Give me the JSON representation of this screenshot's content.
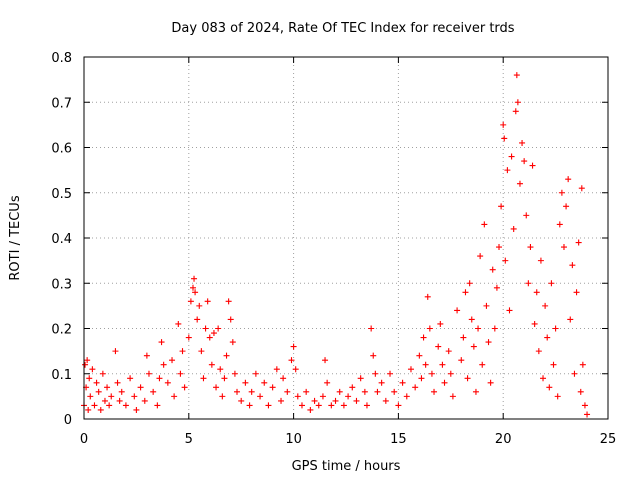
{
  "chart_data": {
    "type": "scatter",
    "title": "Day 083 of 2024, Rate Of TEC Index for receiver trds",
    "xlabel": "GPS time / hours",
    "ylabel": "ROTI / TECUs",
    "xlim": [
      0,
      25
    ],
    "ylim": [
      0,
      0.8
    ],
    "xticks": [
      0,
      5,
      10,
      15,
      20,
      25
    ],
    "xtick_labels": [
      "0",
      "5",
      "10",
      "15",
      "20",
      "25"
    ],
    "yticks": [
      0,
      0.1,
      0.2,
      0.3,
      0.4,
      0.5,
      0.6,
      0.7,
      0.8
    ],
    "ytick_labels": [
      "0",
      "0.1",
      "0.2",
      "0.3",
      "0.4",
      "0.5",
      "0.6",
      "0.7",
      "0.8"
    ],
    "grid": true,
    "marker": "plus",
    "color": "#ff0000",
    "series": [
      {
        "points": [
          [
            0.0,
            0.03
          ],
          [
            0.05,
            0.12
          ],
          [
            0.1,
            0.07
          ],
          [
            0.15,
            0.13
          ],
          [
            0.2,
            0.02
          ],
          [
            0.25,
            0.09
          ],
          [
            0.3,
            0.05
          ],
          [
            0.4,
            0.11
          ],
          [
            0.5,
            0.03
          ],
          [
            0.6,
            0.08
          ],
          [
            0.7,
            0.06
          ],
          [
            0.8,
            0.02
          ],
          [
            0.9,
            0.1
          ],
          [
            1.0,
            0.04
          ],
          [
            1.1,
            0.07
          ],
          [
            1.2,
            0.03
          ],
          [
            1.3,
            0.05
          ],
          [
            1.5,
            0.15
          ],
          [
            1.6,
            0.08
          ],
          [
            1.7,
            0.04
          ],
          [
            1.8,
            0.06
          ],
          [
            2.0,
            0.03
          ],
          [
            2.2,
            0.09
          ],
          [
            2.4,
            0.05
          ],
          [
            2.5,
            0.02
          ],
          [
            2.7,
            0.07
          ],
          [
            2.9,
            0.04
          ],
          [
            3.0,
            0.14
          ],
          [
            3.1,
            0.1
          ],
          [
            3.3,
            0.06
          ],
          [
            3.5,
            0.03
          ],
          [
            3.6,
            0.09
          ],
          [
            3.7,
            0.17
          ],
          [
            3.8,
            0.12
          ],
          [
            4.0,
            0.08
          ],
          [
            4.2,
            0.13
          ],
          [
            4.3,
            0.05
          ],
          [
            4.5,
            0.21
          ],
          [
            4.6,
            0.1
          ],
          [
            4.7,
            0.15
          ],
          [
            4.8,
            0.07
          ],
          [
            5.0,
            0.18
          ],
          [
            5.1,
            0.26
          ],
          [
            5.2,
            0.29
          ],
          [
            5.25,
            0.31
          ],
          [
            5.3,
            0.28
          ],
          [
            5.4,
            0.22
          ],
          [
            5.5,
            0.25
          ],
          [
            5.6,
            0.15
          ],
          [
            5.7,
            0.09
          ],
          [
            5.8,
            0.2
          ],
          [
            5.9,
            0.26
          ],
          [
            6.0,
            0.18
          ],
          [
            6.1,
            0.12
          ],
          [
            6.2,
            0.19
          ],
          [
            6.3,
            0.07
          ],
          [
            6.4,
            0.2
          ],
          [
            6.5,
            0.11
          ],
          [
            6.6,
            0.05
          ],
          [
            6.7,
            0.09
          ],
          [
            6.8,
            0.14
          ],
          [
            6.9,
            0.26
          ],
          [
            7.0,
            0.22
          ],
          [
            7.1,
            0.17
          ],
          [
            7.2,
            0.1
          ],
          [
            7.3,
            0.06
          ],
          [
            7.5,
            0.04
          ],
          [
            7.7,
            0.08
          ],
          [
            7.9,
            0.03
          ],
          [
            8.0,
            0.06
          ],
          [
            8.2,
            0.1
          ],
          [
            8.4,
            0.05
          ],
          [
            8.6,
            0.08
          ],
          [
            8.8,
            0.03
          ],
          [
            9.0,
            0.07
          ],
          [
            9.2,
            0.11
          ],
          [
            9.4,
            0.04
          ],
          [
            9.5,
            0.09
          ],
          [
            9.7,
            0.06
          ],
          [
            9.9,
            0.13
          ],
          [
            10.0,
            0.16
          ],
          [
            10.1,
            0.11
          ],
          [
            10.2,
            0.05
          ],
          [
            10.4,
            0.03
          ],
          [
            10.6,
            0.06
          ],
          [
            10.8,
            0.02
          ],
          [
            11.0,
            0.04
          ],
          [
            11.2,
            0.03
          ],
          [
            11.4,
            0.05
          ],
          [
            11.5,
            0.13
          ],
          [
            11.6,
            0.08
          ],
          [
            11.8,
            0.03
          ],
          [
            12.0,
            0.04
          ],
          [
            12.2,
            0.06
          ],
          [
            12.4,
            0.03
          ],
          [
            12.6,
            0.05
          ],
          [
            12.8,
            0.07
          ],
          [
            13.0,
            0.04
          ],
          [
            13.2,
            0.09
          ],
          [
            13.4,
            0.06
          ],
          [
            13.5,
            0.03
          ],
          [
            13.7,
            0.2
          ],
          [
            13.8,
            0.14
          ],
          [
            13.9,
            0.1
          ],
          [
            14.0,
            0.06
          ],
          [
            14.2,
            0.08
          ],
          [
            14.4,
            0.04
          ],
          [
            14.6,
            0.1
          ],
          [
            14.8,
            0.06
          ],
          [
            15.0,
            0.03
          ],
          [
            15.2,
            0.08
          ],
          [
            15.4,
            0.05
          ],
          [
            15.6,
            0.11
          ],
          [
            15.8,
            0.07
          ],
          [
            16.0,
            0.14
          ],
          [
            16.1,
            0.09
          ],
          [
            16.2,
            0.18
          ],
          [
            16.3,
            0.12
          ],
          [
            16.4,
            0.27
          ],
          [
            16.5,
            0.2
          ],
          [
            16.6,
            0.1
          ],
          [
            16.7,
            0.06
          ],
          [
            16.9,
            0.16
          ],
          [
            17.0,
            0.21
          ],
          [
            17.1,
            0.12
          ],
          [
            17.2,
            0.08
          ],
          [
            17.4,
            0.15
          ],
          [
            17.5,
            0.1
          ],
          [
            17.6,
            0.05
          ],
          [
            17.8,
            0.24
          ],
          [
            18.0,
            0.13
          ],
          [
            18.1,
            0.18
          ],
          [
            18.2,
            0.28
          ],
          [
            18.3,
            0.09
          ],
          [
            18.4,
            0.3
          ],
          [
            18.5,
            0.22
          ],
          [
            18.6,
            0.16
          ],
          [
            18.7,
            0.06
          ],
          [
            18.8,
            0.2
          ],
          [
            18.9,
            0.36
          ],
          [
            19.0,
            0.12
          ],
          [
            19.1,
            0.43
          ],
          [
            19.2,
            0.25
          ],
          [
            19.3,
            0.17
          ],
          [
            19.4,
            0.08
          ],
          [
            19.5,
            0.33
          ],
          [
            19.6,
            0.2
          ],
          [
            19.7,
            0.29
          ],
          [
            19.8,
            0.38
          ],
          [
            19.9,
            0.47
          ],
          [
            20.0,
            0.65
          ],
          [
            20.05,
            0.62
          ],
          [
            20.1,
            0.35
          ],
          [
            20.2,
            0.55
          ],
          [
            20.3,
            0.24
          ],
          [
            20.4,
            0.58
          ],
          [
            20.5,
            0.42
          ],
          [
            20.6,
            0.68
          ],
          [
            20.65,
            0.76
          ],
          [
            20.7,
            0.7
          ],
          [
            20.8,
            0.52
          ],
          [
            20.9,
            0.61
          ],
          [
            21.0,
            0.57
          ],
          [
            21.1,
            0.45
          ],
          [
            21.2,
            0.3
          ],
          [
            21.3,
            0.38
          ],
          [
            21.4,
            0.56
          ],
          [
            21.5,
            0.21
          ],
          [
            21.6,
            0.28
          ],
          [
            21.7,
            0.15
          ],
          [
            21.8,
            0.35
          ],
          [
            21.9,
            0.09
          ],
          [
            22.0,
            0.25
          ],
          [
            22.1,
            0.18
          ],
          [
            22.2,
            0.07
          ],
          [
            22.3,
            0.3
          ],
          [
            22.4,
            0.12
          ],
          [
            22.5,
            0.2
          ],
          [
            22.6,
            0.05
          ],
          [
            22.7,
            0.43
          ],
          [
            22.8,
            0.5
          ],
          [
            22.9,
            0.38
          ],
          [
            23.0,
            0.47
          ],
          [
            23.1,
            0.53
          ],
          [
            23.2,
            0.22
          ],
          [
            23.3,
            0.34
          ],
          [
            23.4,
            0.1
          ],
          [
            23.5,
            0.28
          ],
          [
            23.6,
            0.39
          ],
          [
            23.7,
            0.06
          ],
          [
            23.75,
            0.51
          ],
          [
            23.8,
            0.12
          ],
          [
            23.9,
            0.03
          ],
          [
            24.0,
            0.01
          ]
        ]
      }
    ]
  }
}
